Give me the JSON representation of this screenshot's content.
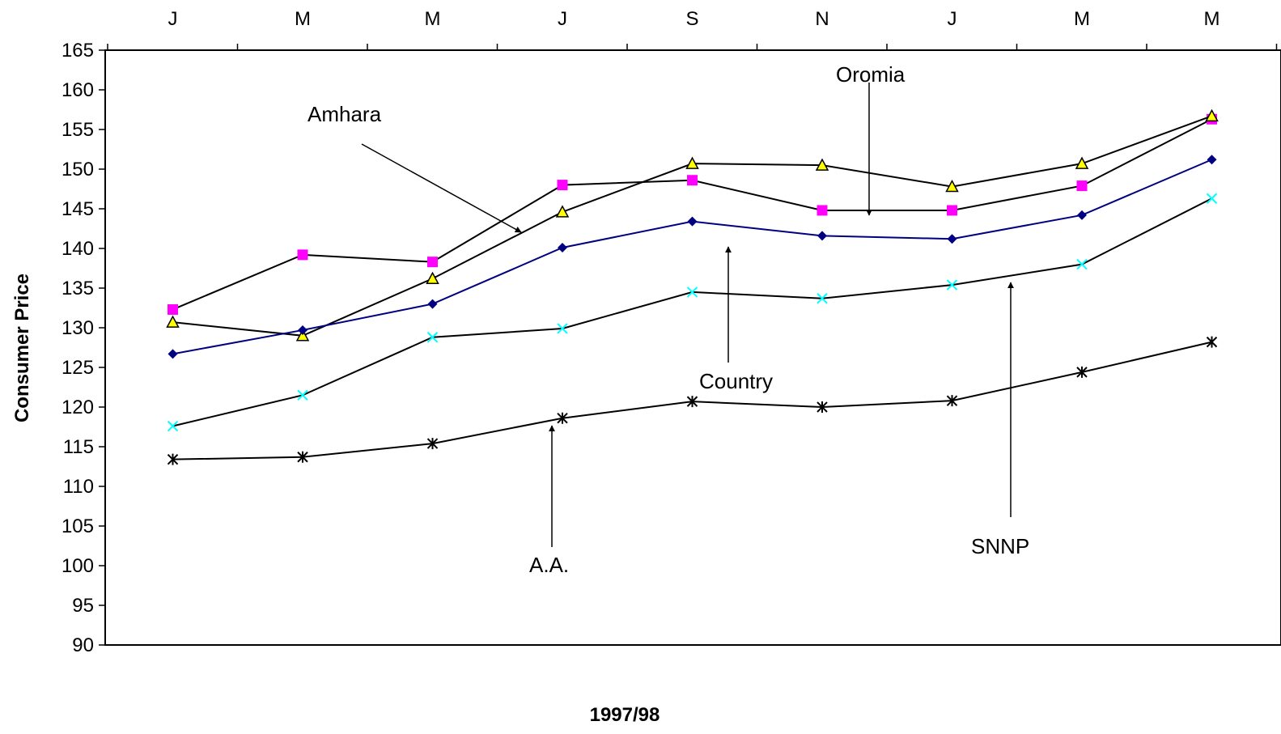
{
  "chart_data": {
    "type": "line",
    "xlabel": "1997/98",
    "ylabel": "Consumer Price",
    "categories": [
      "J",
      "M",
      "M",
      "J",
      "S",
      "N",
      "J",
      "M",
      "M"
    ],
    "ylim": [
      90,
      165
    ],
    "yticks": [
      90,
      95,
      100,
      105,
      110,
      115,
      120,
      125,
      130,
      135,
      140,
      145,
      150,
      155,
      160,
      165
    ],
    "grid": false,
    "series": [
      {
        "key": "amhara",
        "color": "#FF00FF",
        "marker": "square",
        "values": [
          132.3,
          139.2,
          138.3,
          148.0,
          148.6,
          144.8,
          144.8,
          147.9,
          156.3
        ]
      },
      {
        "key": "oromia",
        "color": "#000000",
        "marker": "triangle",
        "values": [
          130.7,
          129.0,
          136.2,
          144.6,
          150.7,
          150.5,
          147.8,
          150.7,
          156.7
        ]
      },
      {
        "key": "country",
        "color": "#000080",
        "marker": "diamond",
        "values": [
          126.7,
          129.7,
          133.0,
          140.1,
          143.4,
          141.6,
          141.2,
          144.2,
          151.2
        ]
      },
      {
        "key": "snnp",
        "color": "#00FFFF",
        "marker": "x",
        "values": [
          117.6,
          121.5,
          128.8,
          129.9,
          134.5,
          133.7,
          135.4,
          138.0,
          146.3
        ]
      },
      {
        "key": "aa",
        "color": "#000000",
        "marker": "star",
        "values": [
          113.4,
          113.7,
          115.4,
          118.6,
          120.7,
          120.0,
          120.8,
          124.4,
          128.2
        ]
      }
    ],
    "annotations": [
      {
        "text": "Amhara",
        "points_to": "amhara"
      },
      {
        "text": "Oromia",
        "points_to": "oromia"
      },
      {
        "text": "Country",
        "points_to": "country"
      },
      {
        "text": "SNNP",
        "points_to": "snnp"
      },
      {
        "text": "A.A.",
        "points_to": "aa"
      }
    ]
  }
}
